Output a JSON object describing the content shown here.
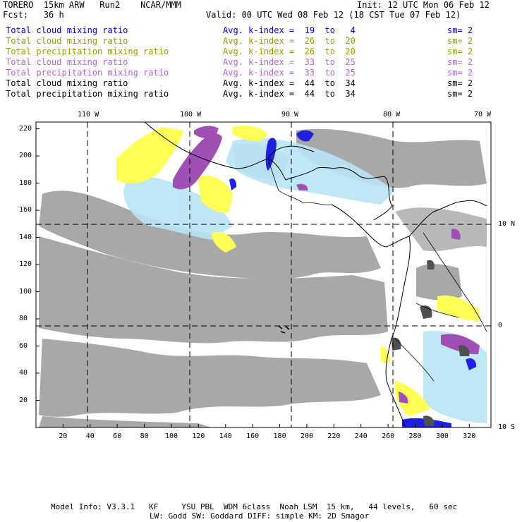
{
  "header": {
    "model": "TORERO  15km ARW   Run2    NCAR/MMM",
    "init": "Init: 12 UTC Mon 06 Feb 12",
    "fcst": "Fcst:   36 h",
    "valid": "Valid: 00 UTC Wed 08 Feb 12 (18 CST Tue 07 Feb 12)"
  },
  "legend": [
    {
      "label": "Total cloud mixing ratio",
      "stat": "Avg. k-index =  19  to   4",
      "sm": "sm= 2",
      "color": "#0000cc"
    },
    {
      "label": "Total cloud mixing ratio",
      "stat": "Avg. k-index =  26  to  20",
      "sm": "sm= 2",
      "color": "#999900"
    },
    {
      "label": "Total precipitation mixing ratio",
      "stat": "Avg. k-index =  26  to  20",
      "sm": "sm= 2",
      "color": "#999900"
    },
    {
      "label": "Total cloud mixing ratio",
      "stat": "Avg. k-index =  33  to  25",
      "sm": "sm= 2",
      "color": "#b266cc"
    },
    {
      "label": "Total precipitation mixing ratio",
      "stat": "Avg. k-index =  33  to  25",
      "sm": "sm= 2",
      "color": "#b266cc"
    },
    {
      "label": "Total cloud mixing ratio",
      "stat": "Avg. k-index =  44  to  34",
      "sm": "sm= 2",
      "color": "#000000"
    },
    {
      "label": "Total precipitation mixing ratio",
      "stat": "Avg. k-index =  44  to  34",
      "sm": "sm= 2",
      "color": "#000000"
    }
  ],
  "map": {
    "lon_labels": [
      "110 W",
      "100 W",
      "90 W",
      "80 W",
      "70 W"
    ],
    "lat_labels": [
      "10 N",
      "0",
      "10 S"
    ],
    "grid_x_ticks": [
      "20",
      "40",
      "60",
      "80",
      "100",
      "120",
      "140",
      "160",
      "180",
      "200",
      "220",
      "240",
      "260",
      "280",
      "300",
      "320"
    ],
    "grid_y_ticks": [
      "20",
      "40",
      "60",
      "80",
      "100",
      "120",
      "140",
      "160",
      "180",
      "200",
      "220"
    ],
    "colors": {
      "cloud_gray": "#a6a6a6",
      "yellow": "#ffff55",
      "purple": "#a050b4",
      "blue": "#2020e0",
      "lightblue": "#b8e4f4",
      "dark": "#505050"
    }
  },
  "footer": {
    "line1": "Model Info: V3.3.1   KF     YSU PBL  WDM 6class  Noah LSM  15 km,   44 levels,   60 sec",
    "line2": "LW: Godd SW: Goddard DIFF: simple KM: 2D Smagor"
  }
}
